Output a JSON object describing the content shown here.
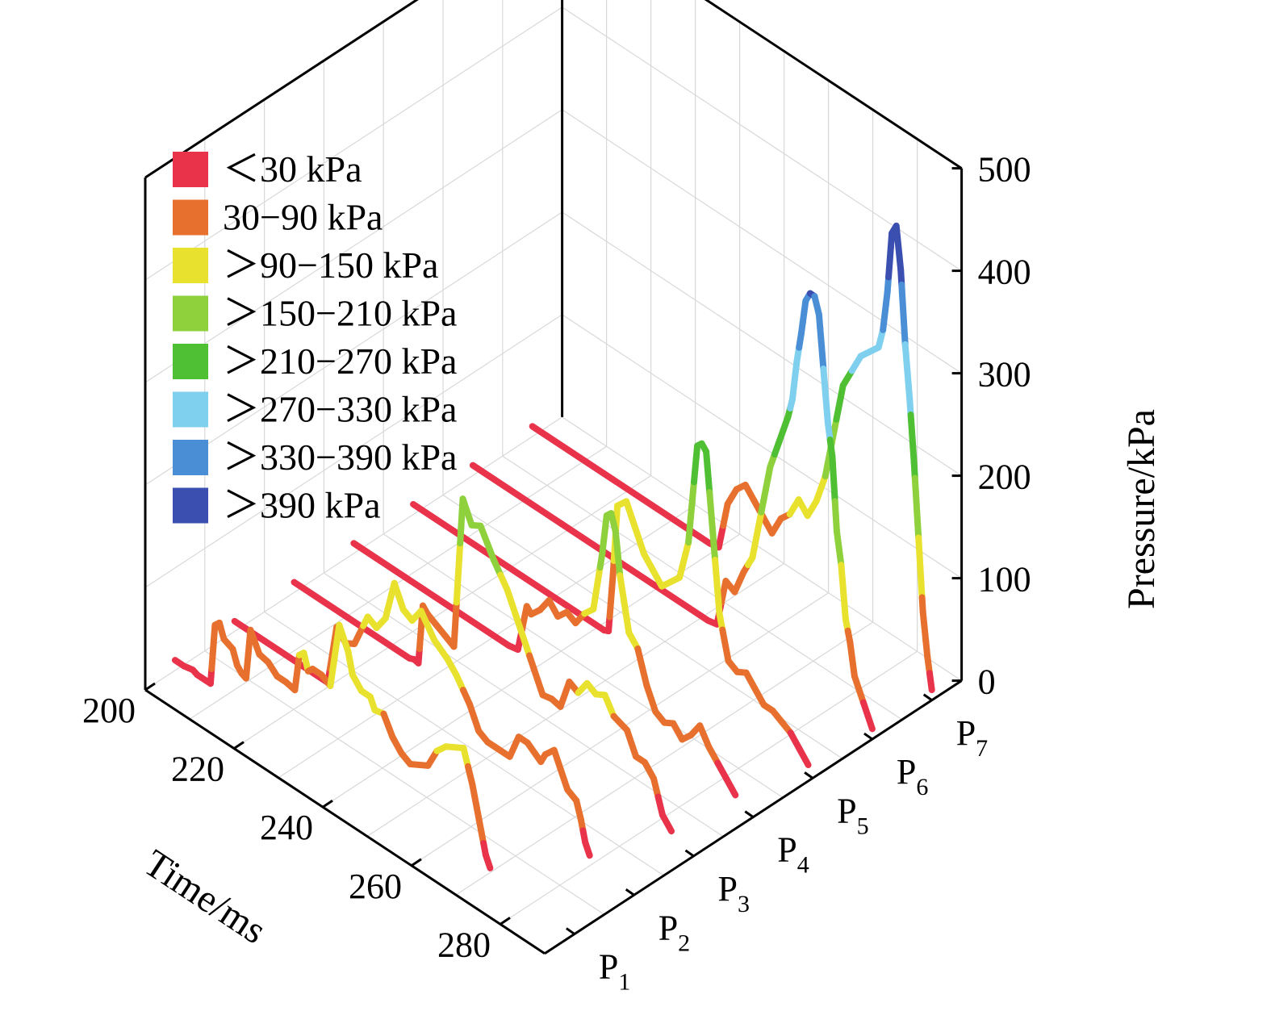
{
  "chart_data": {
    "type": "line",
    "title": "",
    "xlabel": "Time/ms",
    "ylabel": "Pressure/kPa",
    "series_axis_label": "",
    "x_ticks": [
      "200",
      "220",
      "240",
      "260",
      "280"
    ],
    "z_ticks": [
      "0",
      "100",
      "200",
      "300",
      "400",
      "500"
    ],
    "xlim": [
      200,
      290
    ],
    "zlim": [
      0,
      500
    ],
    "grid": true,
    "legend_position": "top-left",
    "color_scale": [
      {
        "label": "＜30 kPa",
        "max": 30,
        "color": "#e8334a"
      },
      {
        "label": "30−90 kPa",
        "max": 90,
        "color": "#e8702e"
      },
      {
        "label": "＞90−150 kPa",
        "max": 150,
        "color": "#e8e22e"
      },
      {
        "label": "＞150−210 kPa",
        "max": 210,
        "color": "#8ed13c"
      },
      {
        "label": "＞210−270 kPa",
        "max": 270,
        "color": "#4fbf33"
      },
      {
        "label": "＞270−330 kPa",
        "max": 330,
        "color": "#7fcfee"
      },
      {
        "label": "＞330−390 kPa",
        "max": 390,
        "color": "#4a8fd6"
      },
      {
        "label": "＞390 kPa",
        "max": 10000,
        "color": "#3a4fb0"
      }
    ],
    "series": [
      {
        "name": "P1",
        "base": "P",
        "sub": "1",
        "x": [
          200,
          202,
          203,
          204,
          205,
          206,
          208,
          209,
          210,
          211,
          212,
          213,
          214,
          215,
          216,
          217,
          219,
          221,
          223,
          225,
          227,
          228,
          229,
          230,
          231,
          233,
          235,
          237,
          239,
          240,
          242,
          244,
          245,
          247,
          249,
          251,
          253,
          255,
          257,
          259,
          261,
          263,
          265,
          266,
          267,
          268,
          269,
          270,
          271
        ],
        "y": [
          10,
          10,
          11,
          12,
          10,
          10,
          10,
          70,
          75,
          62,
          60,
          58,
          45,
          40,
          38,
          88,
          70,
          68,
          60,
          60,
          58,
          95,
          100,
          85,
          90,
          90,
          85,
          150,
          130,
          110,
          100,
          100,
          90,
          92,
          75,
          65,
          60,
          65,
          70,
          90,
          100,
          105,
          110,
          95,
          80,
          60,
          40,
          20,
          10
        ]
      },
      {
        "name": "P2",
        "base": "P",
        "sub": "2",
        "x": [
          200,
          210,
          218,
          221,
          223,
          225,
          227,
          230,
          232,
          234,
          236,
          238,
          240,
          242,
          245,
          248,
          250,
          253,
          255,
          257,
          259,
          262,
          264,
          266,
          269,
          270,
          272,
          275,
          277,
          278,
          279,
          280
        ],
        "y": [
          10,
          10,
          10,
          10,
          70,
          60,
          65,
          100,
          95,
          110,
          150,
          130,
          125,
          140,
          120,
          110,
          100,
          80,
          60,
          55,
          55,
          55,
          80,
          80,
          70,
          80,
          90,
          60,
          55,
          40,
          20,
          10
        ]
      },
      {
        "name": "P3",
        "base": "P",
        "sub": "3",
        "x": [
          200,
          212,
          226,
          227,
          228,
          229,
          230,
          232,
          234,
          236,
          238,
          240,
          242,
          245,
          248,
          250,
          252,
          254,
          256,
          258,
          260,
          262,
          264,
          266,
          268,
          270,
          272,
          275,
          277,
          279,
          281,
          283,
          285
        ],
        "y": [
          10,
          10,
          10,
          12,
          11,
          70,
          65,
          60,
          55,
          50,
          200,
          180,
          185,
          160,
          140,
          120,
          100,
          80,
          60,
          62,
          60,
          90,
          85,
          100,
          95,
          100,
          85,
          80,
          60,
          60,
          50,
          20,
          10
        ]
      },
      {
        "name": "P4",
        "base": "P",
        "sub": "4",
        "x": [
          200,
          215,
          235,
          237,
          239,
          240,
          242,
          244,
          246,
          248,
          250,
          252,
          254,
          256,
          257,
          258,
          259,
          260,
          262,
          264,
          266,
          268,
          270,
          272,
          274,
          276,
          278,
          280,
          282,
          284,
          286
        ],
        "y": [
          10,
          10,
          10,
          12,
          60,
          55,
          65,
          80,
          70,
          80,
          75,
          90,
          100,
          160,
          200,
          205,
          190,
          150,
          100,
          90,
          60,
          40,
          35,
          40,
          30,
          40,
          55,
          40,
          30,
          20,
          10
        ]
      },
      {
        "name": "P5",
        "base": "P",
        "sub": "5",
        "x": [
          200,
          218,
          243,
          244,
          245,
          246,
          248,
          250,
          252,
          254,
          256,
          258,
          260,
          262,
          263,
          264,
          265,
          266,
          267,
          268,
          269,
          271,
          273,
          275,
          277,
          279,
          281,
          283,
          285,
          287,
          289
        ],
        "y": [
          10,
          10,
          10,
          12,
          70,
          140,
          150,
          130,
          110,
          100,
          90,
          100,
          110,
          150,
          200,
          250,
          255,
          250,
          200,
          150,
          100,
          60,
          55,
          60,
          50,
          40,
          40,
          35,
          30,
          20,
          10
        ]
      },
      {
        "name": "P6",
        "base": "P",
        "sub": "6",
        "x": [
          200,
          220,
          253,
          255,
          257,
          259,
          261,
          263,
          265,
          267,
          269,
          271,
          272,
          273,
          274,
          275,
          276,
          277,
          278,
          279,
          280,
          281,
          282,
          283,
          284,
          285,
          286,
          287,
          288,
          289,
          290
        ],
        "y": [
          10,
          10,
          10,
          12,
          60,
          55,
          80,
          100,
          150,
          200,
          230,
          260,
          280,
          320,
          350,
          385,
          395,
          395,
          380,
          330,
          280,
          250,
          180,
          150,
          100,
          80,
          50,
          40,
          30,
          20,
          10
        ]
      },
      {
        "name": "P7",
        "base": "P",
        "sub": "7",
        "x": [
          200,
          240,
          242,
          244,
          246,
          248,
          250,
          252,
          254,
          256,
          258,
          260,
          262,
          264,
          266,
          268,
          270,
          272,
          274,
          276,
          278,
          279,
          280,
          281,
          282,
          283,
          284,
          285,
          286,
          287,
          288,
          289,
          290
        ],
        "y": [
          10,
          10,
          12,
          60,
          80,
          90,
          80,
          70,
          60,
          80,
          90,
          110,
          100,
          120,
          150,
          200,
          250,
          270,
          290,
          300,
          310,
          330,
          370,
          430,
          440,
          400,
          330,
          280,
          220,
          150,
          80,
          40,
          10
        ]
      }
    ]
  }
}
